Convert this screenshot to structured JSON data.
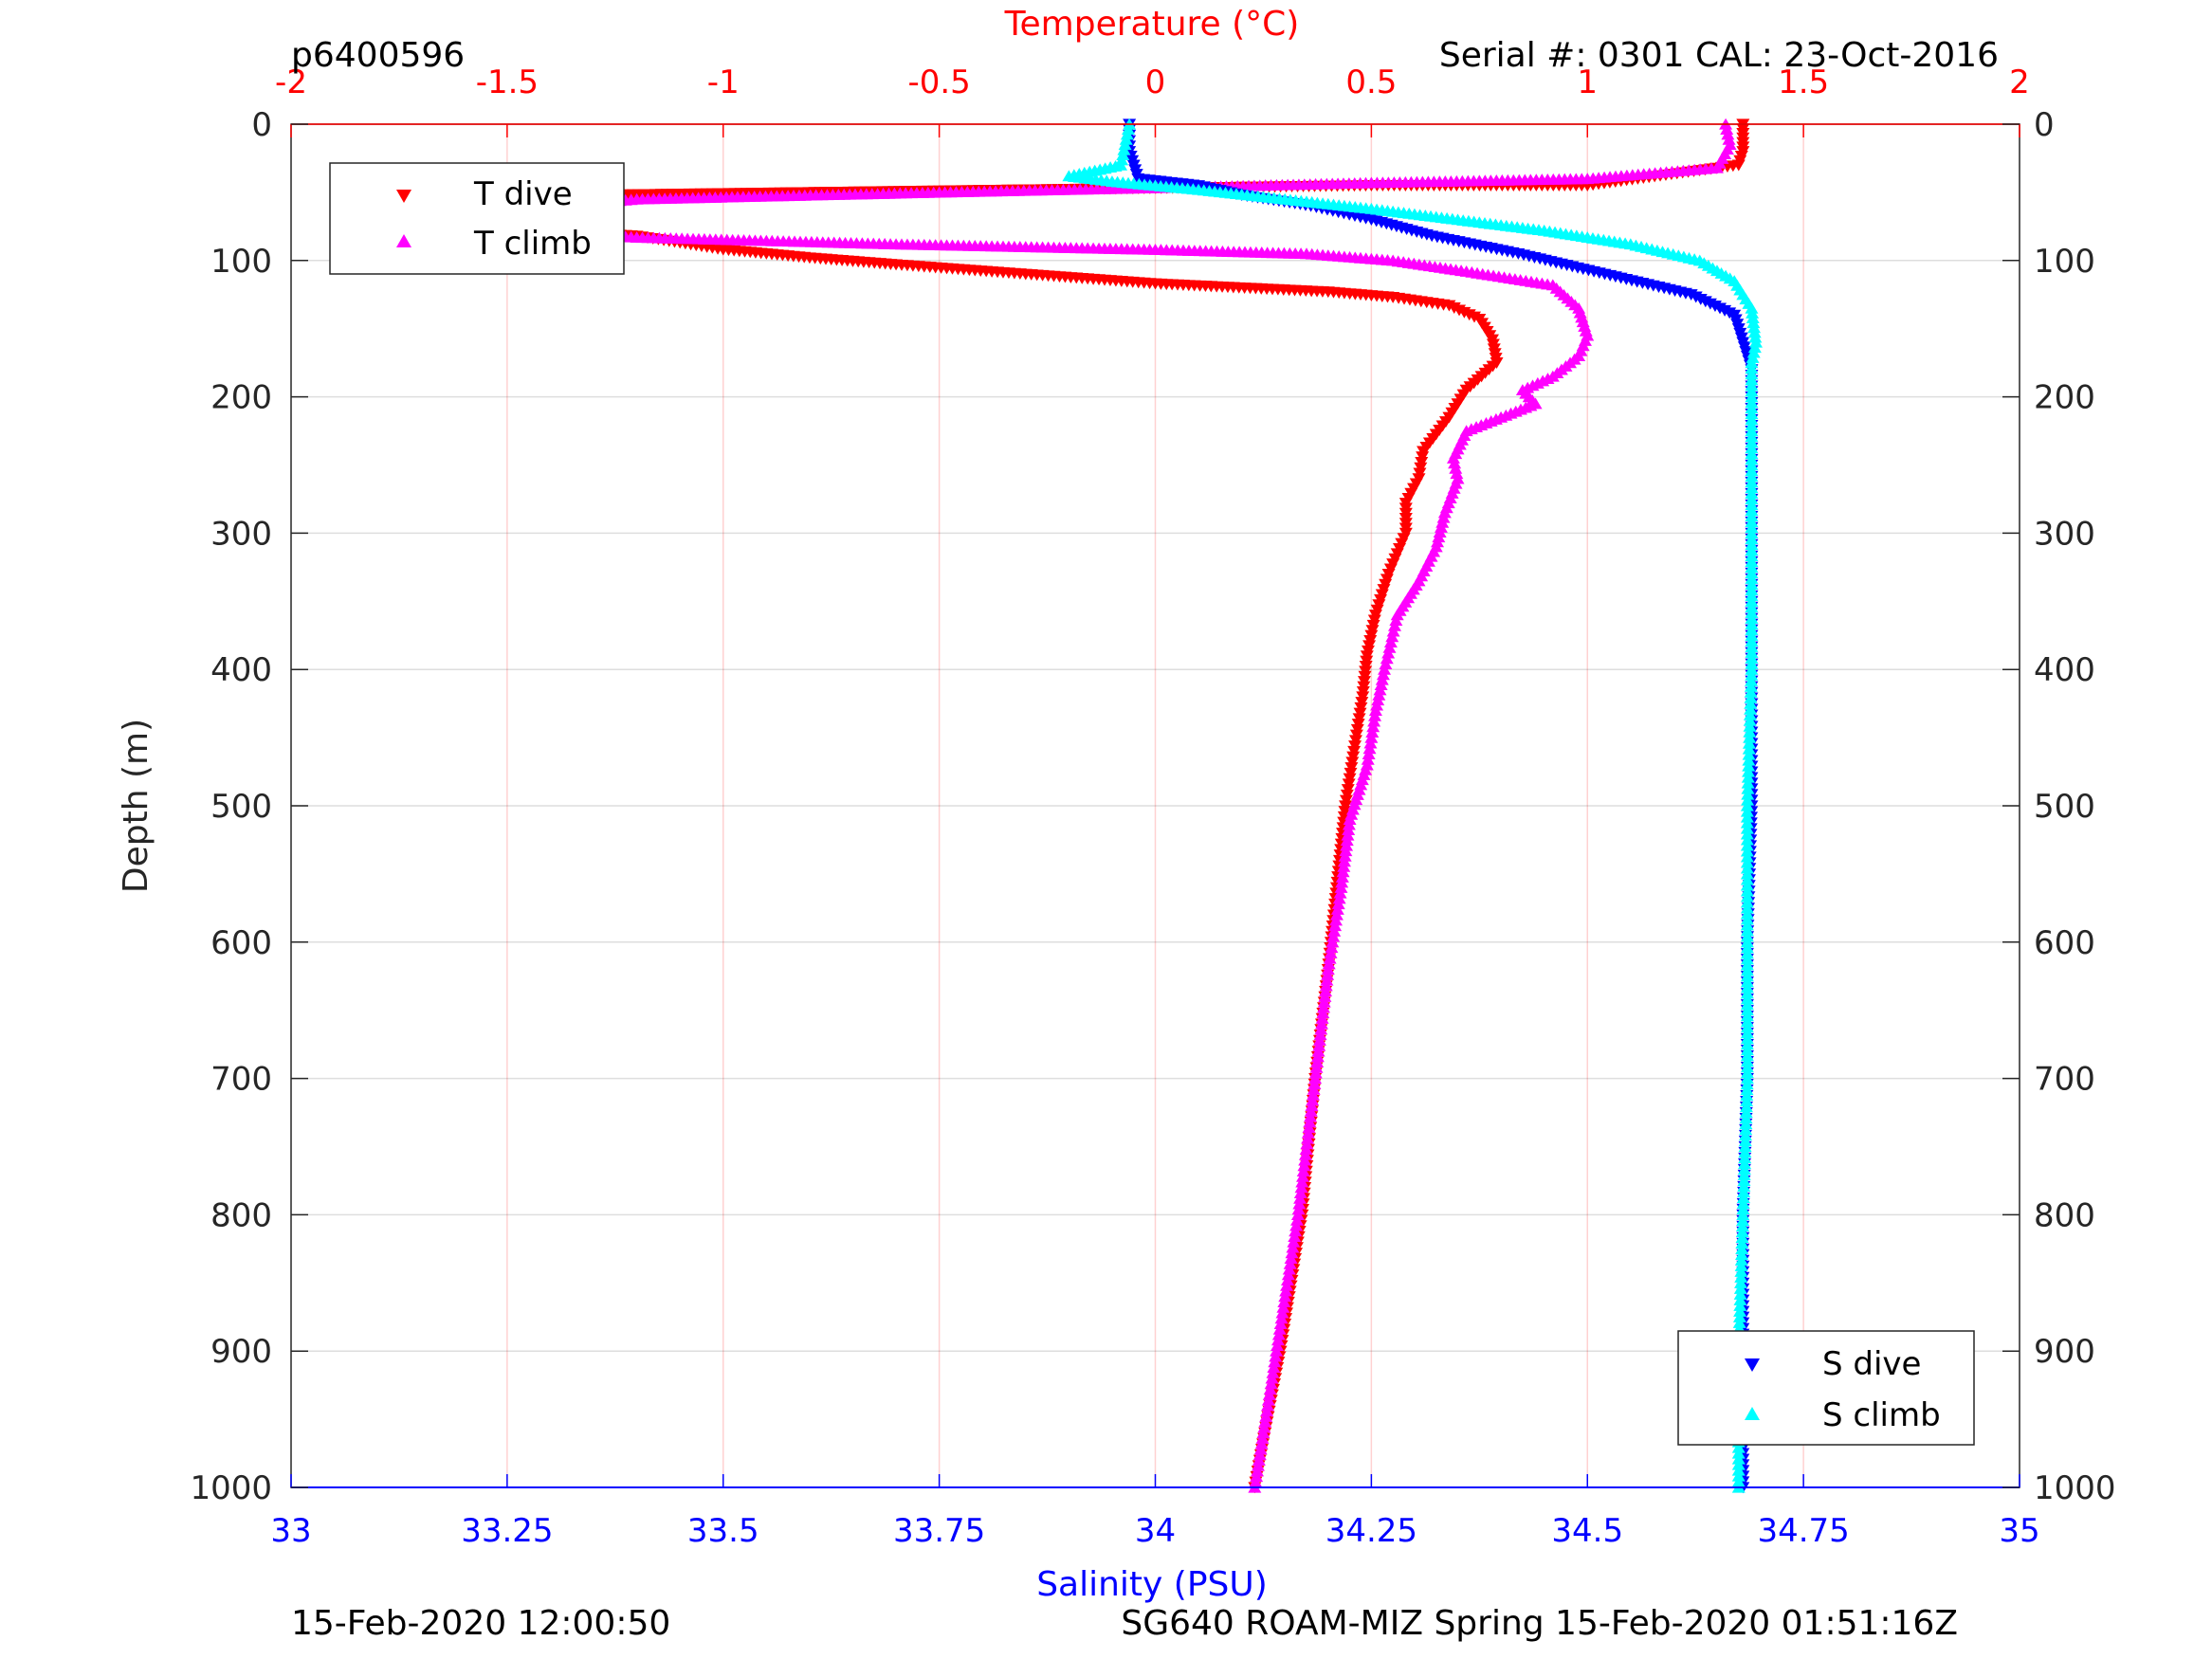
{
  "chart_data": {
    "type": "scatter",
    "header_left": "p6400596",
    "header_right": "Serial #: 0301  CAL: 23-Oct-2016",
    "footer_left": "15-Feb-2020 12:00:50",
    "footer_right": "SG640 ROAM-MIZ Spring 15-Feb-2020 01:51:16Z",
    "ylabel": "Depth (m)",
    "ylim": [
      0,
      1000
    ],
    "y_reversed": true,
    "y_ticks": [
      0,
      100,
      200,
      300,
      400,
      500,
      600,
      700,
      800,
      900,
      1000
    ],
    "grid": true,
    "temperature_axis": {
      "label": "Temperature (°C)",
      "position": "top",
      "range": [
        -2,
        2
      ],
      "ticks": [
        -2,
        -1.5,
        -1,
        -0.5,
        0,
        0.5,
        1,
        1.5,
        2
      ],
      "tick_labels": [
        "-2",
        "-1.5",
        "-1",
        "-0.5",
        "0",
        "0.5",
        "1",
        "1.5",
        "2"
      ],
      "color": "#ff0000"
    },
    "salinity_axis": {
      "label": "Salinity (PSU)",
      "position": "bottom",
      "range": [
        33,
        35
      ],
      "ticks": [
        33,
        33.25,
        33.5,
        33.75,
        34,
        34.25,
        34.5,
        34.75,
        35
      ],
      "tick_labels": [
        "33",
        "33.25",
        "33.5",
        "33.75",
        "34",
        "34.25",
        "34.5",
        "34.75",
        "35"
      ],
      "color": "#0000ff"
    },
    "legends": [
      {
        "placement": "top-left",
        "entries": [
          "T dive",
          "T climb"
        ]
      },
      {
        "placement": "bottom-right",
        "entries": [
          "S dive",
          "S climb"
        ]
      }
    ],
    "series": [
      {
        "name": "T dive",
        "axis": "temperature",
        "color": "#ff0000",
        "marker": "triangle-down",
        "points": [
          [
            1.36,
            0
          ],
          [
            1.36,
            10
          ],
          [
            1.36,
            20
          ],
          [
            1.35,
            30
          ],
          [
            1.0,
            45
          ],
          [
            0.5,
            45
          ],
          [
            -1.3,
            52
          ],
          [
            -1.7,
            60
          ],
          [
            -1.73,
            68
          ],
          [
            -1.6,
            75
          ],
          [
            -1.2,
            82
          ],
          [
            -1.0,
            92
          ],
          [
            -0.8,
            98
          ],
          [
            -0.6,
            103
          ],
          [
            -0.3,
            110
          ],
          [
            0.0,
            117
          ],
          [
            0.4,
            123
          ],
          [
            0.55,
            127
          ],
          [
            0.68,
            133
          ],
          [
            0.75,
            143
          ],
          [
            0.78,
            158
          ],
          [
            0.79,
            175
          ],
          [
            0.72,
            195
          ],
          [
            0.68,
            215
          ],
          [
            0.62,
            240
          ],
          [
            0.61,
            260
          ],
          [
            0.58,
            278
          ],
          [
            0.58,
            300
          ],
          [
            0.54,
            330
          ],
          [
            0.51,
            360
          ],
          [
            0.49,
            390
          ],
          [
            0.48,
            420
          ],
          [
            0.46,
            460
          ],
          [
            0.44,
            500
          ],
          [
            0.42,
            560
          ],
          [
            0.4,
            620
          ],
          [
            0.37,
            700
          ],
          [
            0.34,
            800
          ],
          [
            0.29,
            900
          ],
          [
            0.23,
            1000
          ]
        ]
      },
      {
        "name": "T climb",
        "axis": "temperature",
        "color": "#ff00ff",
        "marker": "triangle-up",
        "points": [
          [
            1.32,
            0
          ],
          [
            1.33,
            15
          ],
          [
            1.3,
            32
          ],
          [
            1.0,
            40
          ],
          [
            0.5,
            43
          ],
          [
            0.1,
            46
          ],
          [
            -0.5,
            50
          ],
          [
            -1.2,
            55
          ],
          [
            -1.5,
            63
          ],
          [
            -1.6,
            70
          ],
          [
            -1.5,
            77
          ],
          [
            -1.2,
            83
          ],
          [
            -0.6,
            88
          ],
          [
            0.0,
            92
          ],
          [
            0.35,
            95
          ],
          [
            0.55,
            100
          ],
          [
            0.72,
            108
          ],
          [
            0.92,
            118
          ],
          [
            0.98,
            135
          ],
          [
            1.0,
            155
          ],
          [
            0.98,
            170
          ],
          [
            0.92,
            185
          ],
          [
            0.85,
            195
          ],
          [
            0.88,
            205
          ],
          [
            0.72,
            225
          ],
          [
            0.69,
            245
          ],
          [
            0.7,
            260
          ],
          [
            0.67,
            285
          ],
          [
            0.65,
            310
          ],
          [
            0.61,
            335
          ],
          [
            0.56,
            360
          ],
          [
            0.53,
            400
          ],
          [
            0.51,
            430
          ],
          [
            0.49,
            470
          ],
          [
            0.45,
            510
          ],
          [
            0.43,
            560
          ],
          [
            0.4,
            620
          ],
          [
            0.37,
            700
          ],
          [
            0.33,
            800
          ],
          [
            0.28,
            900
          ],
          [
            0.23,
            1000
          ]
        ]
      },
      {
        "name": "S dive",
        "axis": "salinity",
        "color": "#0000ff",
        "marker": "triangle-down",
        "points": [
          [
            33.97,
            0
          ],
          [
            33.97,
            20
          ],
          [
            33.98,
            40
          ],
          [
            34.05,
            45
          ],
          [
            34.1,
            52
          ],
          [
            34.18,
            60
          ],
          [
            34.25,
            70
          ],
          [
            34.32,
            82
          ],
          [
            34.42,
            95
          ],
          [
            34.52,
            110
          ],
          [
            34.62,
            125
          ],
          [
            34.67,
            140
          ],
          [
            34.68,
            160
          ],
          [
            34.69,
            180
          ],
          [
            34.69,
            200
          ],
          [
            34.69,
            300
          ],
          [
            34.69,
            400
          ],
          [
            34.69,
            500
          ],
          [
            34.685,
            600
          ],
          [
            34.685,
            700
          ],
          [
            34.68,
            800
          ],
          [
            34.68,
            900
          ],
          [
            34.68,
            1000
          ]
        ]
      },
      {
        "name": "S climb",
        "axis": "salinity",
        "color": "#00ffff",
        "marker": "triangle-up",
        "points": [
          [
            33.97,
            0
          ],
          [
            33.965,
            15
          ],
          [
            33.96,
            30
          ],
          [
            33.9,
            38
          ],
          [
            33.95,
            42
          ],
          [
            34.05,
            48
          ],
          [
            34.15,
            55
          ],
          [
            34.25,
            62
          ],
          [
            34.35,
            70
          ],
          [
            34.45,
            78
          ],
          [
            34.55,
            88
          ],
          [
            34.63,
            100
          ],
          [
            34.67,
            115
          ],
          [
            34.69,
            135
          ],
          [
            34.695,
            160
          ],
          [
            34.69,
            175
          ],
          [
            34.69,
            200
          ],
          [
            34.69,
            300
          ],
          [
            34.69,
            400
          ],
          [
            34.685,
            500
          ],
          [
            34.685,
            600
          ],
          [
            34.685,
            700
          ],
          [
            34.68,
            800
          ],
          [
            34.675,
            900
          ],
          [
            34.675,
            1000
          ]
        ]
      }
    ]
  }
}
